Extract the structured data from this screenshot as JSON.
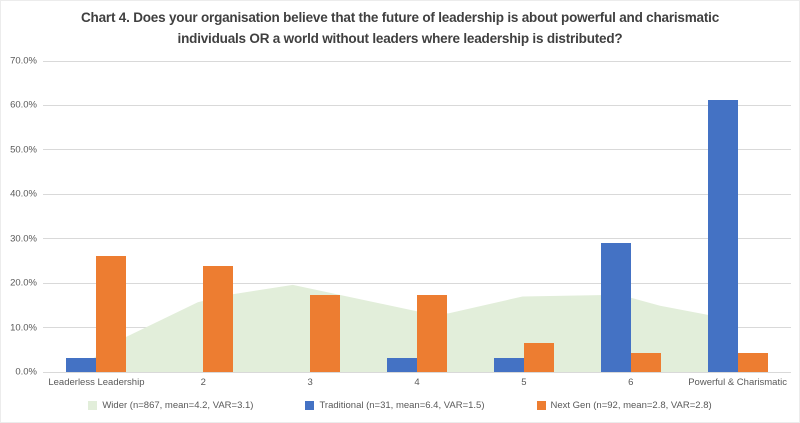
{
  "title": "Chart 4. Does your organisation believe that the future of leadership is about powerful and charismatic individuals OR a world without leaders where leadership is distributed?",
  "colors": {
    "wider_area": "#e2eeda",
    "traditional_bar": "#4472c4",
    "next_gen_bar": "#ed7d31",
    "gridline": "#d9d9d9",
    "title_text": "#404040",
    "axis_text": "#595959"
  },
  "chart_data": {
    "type": "bar",
    "subtype": "combo: grouped columns + background area series",
    "title": "Chart 4. Does your organisation believe that the future of leadership is about powerful and charismatic individuals OR a world without leaders where leadership is distributed?",
    "categories": [
      "Leaderless Leadership",
      "2",
      "3",
      "4",
      "5",
      "6",
      "Powerful & Charismatic"
    ],
    "y_axis": {
      "min": 0,
      "max": 70,
      "tick_step": 10,
      "tick_labels": [
        "0.0%",
        "10.0%",
        "20.0%",
        "30.0%",
        "40.0%",
        "50.0%",
        "60.0%",
        "70.0%"
      ],
      "format": "percent"
    },
    "gridlines": true,
    "legend_position": "bottom",
    "series": [
      {
        "name": "Wider (n=867, mean=4.2, VAR=3.1)",
        "type": "area",
        "color": "#e2eeda",
        "values": [
          3.0,
          15.7,
          19.6,
          13.9,
          17.0,
          17.4,
          12.4
        ],
        "render_profile": [
          {
            "x_frac": 0.04,
            "value": 0.0
          },
          {
            "x_frac": 0.105,
            "value": 7.4
          },
          {
            "x_frac": 0.207,
            "value": 15.7
          },
          {
            "x_frac": 0.246,
            "value": 17.3
          },
          {
            "x_frac": 0.334,
            "value": 19.6
          },
          {
            "x_frac": 0.502,
            "value": 13.6
          },
          {
            "x_frac": 0.542,
            "value": 13.2
          },
          {
            "x_frac": 0.641,
            "value": 17.0
          },
          {
            "x_frac": 0.771,
            "value": 17.4
          },
          {
            "x_frac": 0.825,
            "value": 14.9
          },
          {
            "x_frac": 0.903,
            "value": 12.4
          }
        ]
      },
      {
        "name": "Traditional (n=31, mean=6.4, VAR=1.5)",
        "type": "bar",
        "color": "#4472c4",
        "values": [
          3.2,
          0,
          0,
          3.2,
          3.2,
          29.0,
          61.3
        ]
      },
      {
        "name": "Next Gen (n=92, mean=2.8, VAR=2.8)",
        "type": "bar",
        "color": "#ed7d31",
        "values": [
          26.1,
          23.9,
          17.4,
          17.4,
          6.5,
          4.3,
          4.3
        ]
      }
    ]
  }
}
